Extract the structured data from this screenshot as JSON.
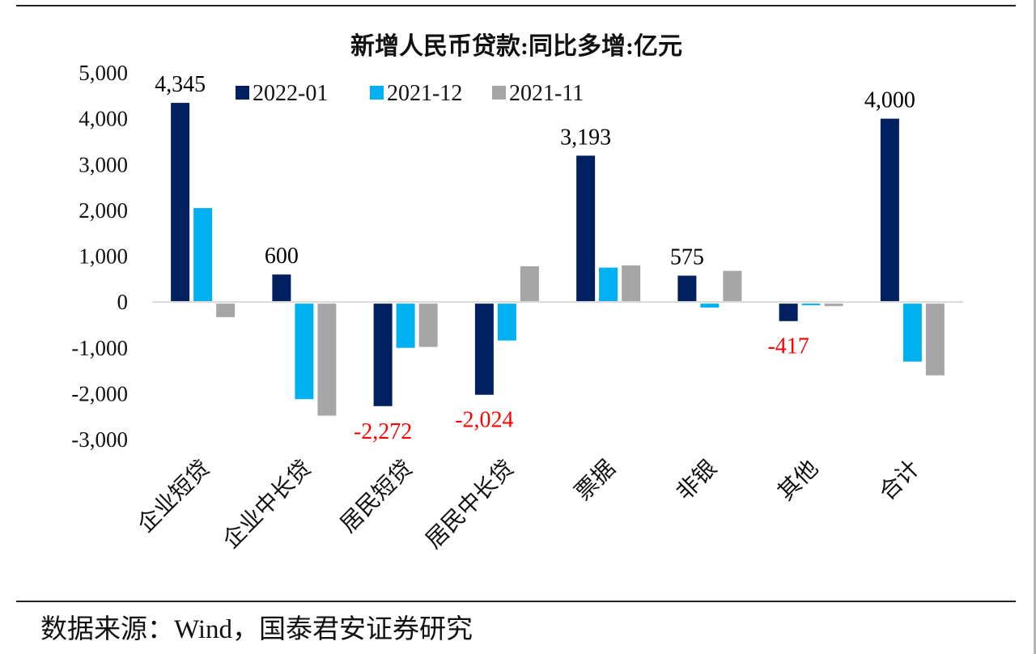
{
  "source_note": "数据来源：Wind，国泰君安证券研究",
  "chart_data": {
    "type": "bar",
    "title": "新增人民币贷款:同比多增:亿元",
    "xlabel": "",
    "ylabel": "",
    "ylim": [
      -3000,
      5000
    ],
    "yticks": [
      5000,
      4000,
      3000,
      2000,
      1000,
      0,
      -1000,
      -2000,
      -3000
    ],
    "ytick_labels": [
      "5,000",
      "4,000",
      "3,000",
      "2,000",
      "1,000",
      "0",
      "-1,000",
      "-2,000",
      "-3,000"
    ],
    "grid": false,
    "legend_position": "top",
    "categories": [
      "企业短贷",
      "企业中长贷",
      "居民短贷",
      "居民中长贷",
      "票据",
      "非银",
      "其他",
      "合计"
    ],
    "series": [
      {
        "name": "2022-01",
        "color": "#002060",
        "values": [
          4345,
          600,
          -2272,
          -2024,
          3193,
          575,
          -417,
          4000
        ]
      },
      {
        "name": "2021-12",
        "color": "#00B0F0",
        "values": [
          2050,
          -2120,
          -1000,
          -840,
          750,
          -120,
          -40,
          -1300
        ]
      },
      {
        "name": "2021-11",
        "color": "#A6A6A6",
        "values": [
          -330,
          -2480,
          -980,
          780,
          800,
          680,
          -90,
          -1600
        ]
      }
    ],
    "data_labels": [
      {
        "series": "2022-01",
        "category": "企业短贷",
        "text": "4,345",
        "color": "#000000"
      },
      {
        "series": "2022-01",
        "category": "企业中长贷",
        "text": "600",
        "color": "#000000"
      },
      {
        "series": "2022-01",
        "category": "居民短贷",
        "text": "-2,272",
        "color": "#FF0000"
      },
      {
        "series": "2022-01",
        "category": "居民中长贷",
        "text": "-2,024",
        "color": "#FF0000"
      },
      {
        "series": "2022-01",
        "category": "票据",
        "text": "3,193",
        "color": "#000000"
      },
      {
        "series": "2022-01",
        "category": "非银",
        "text": "575",
        "color": "#000000"
      },
      {
        "series": "2022-01",
        "category": "其他",
        "text": "-417",
        "color": "#FF0000"
      },
      {
        "series": "2022-01",
        "category": "合计",
        "text": "4,000",
        "color": "#000000"
      }
    ]
  }
}
